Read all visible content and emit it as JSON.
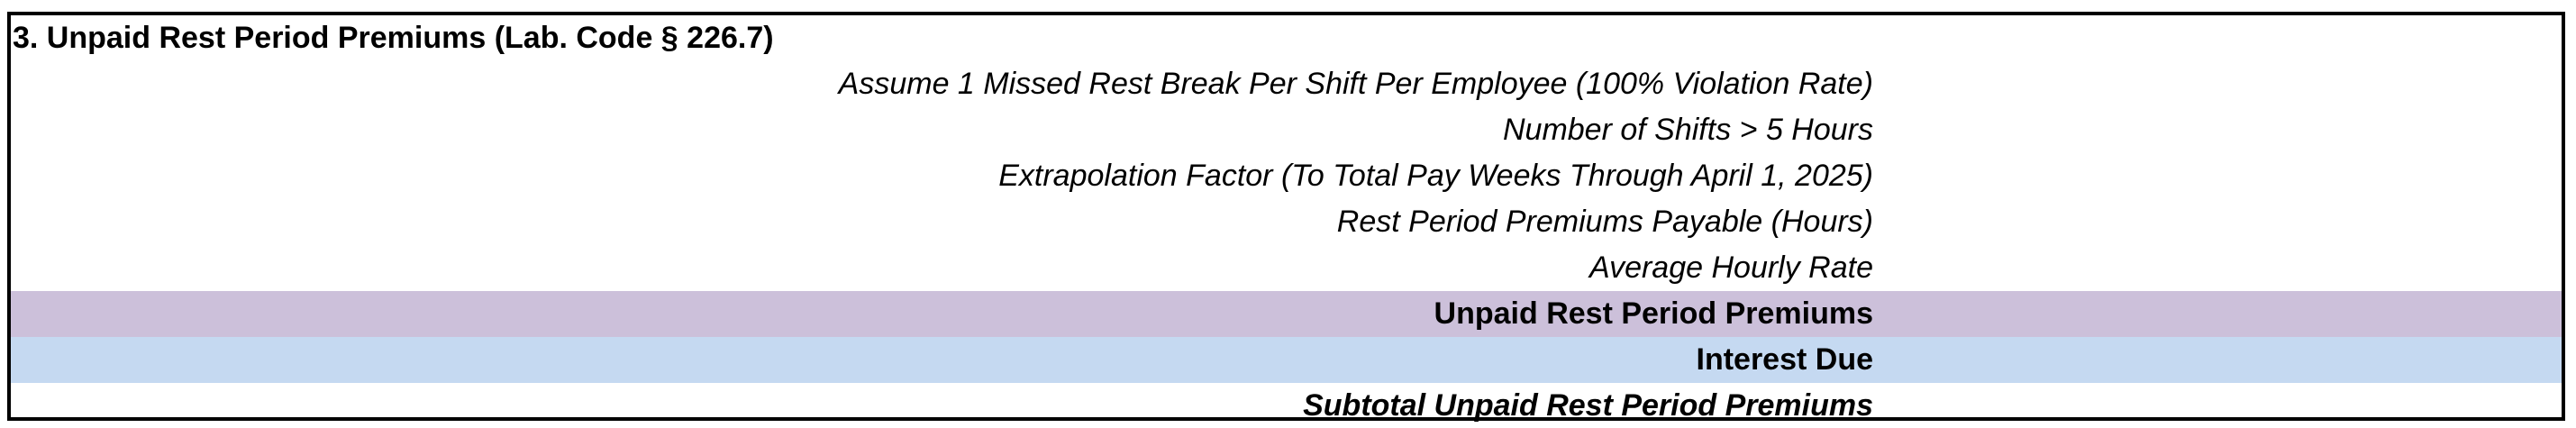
{
  "section": {
    "title": "3. Unpaid Rest Period Premiums (Lab. Code § 226.7)"
  },
  "rows": {
    "assume": "Assume 1 Missed Rest Break Per Shift Per Employee (100% Violation Rate)",
    "shifts": "Number of Shifts > 5 Hours",
    "extrapolation": "Extrapolation Factor (To Total Pay Weeks Through April 1, 2025)",
    "payable_hours": "Rest Period Premiums Payable (Hours)",
    "hourly_rate": "Average Hourly Rate",
    "unpaid": "Unpaid Rest Period Premiums",
    "interest": "Interest Due",
    "subtotal": "Subtotal Unpaid Rest Period Premiums"
  },
  "colors": {
    "unpaid_row_fill": "#ccc0da",
    "interest_row_fill": "#c5d9f1",
    "border": "#000000"
  }
}
